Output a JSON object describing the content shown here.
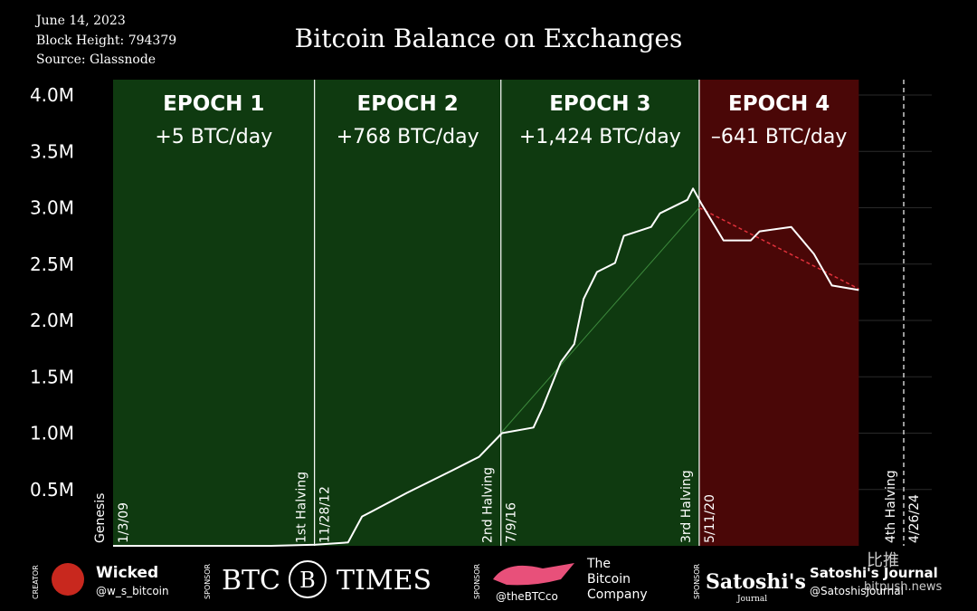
{
  "chart_data": {
    "type": "line",
    "title": "Bitcoin Balance on Exchanges",
    "info": [
      "June 14, 2023",
      "Block Height: 794379",
      "Source: Glassnode"
    ],
    "xlim": [
      2009.01,
      2024.32
    ],
    "ylim": [
      0,
      4.0
    ],
    "yticks": [
      {
        "value": 0.5,
        "label": "0.5M"
      },
      {
        "value": 1.0,
        "label": "1.0M"
      },
      {
        "value": 1.5,
        "label": "1.5M"
      },
      {
        "value": 2.0,
        "label": "2.0M"
      },
      {
        "value": 2.5,
        "label": "2.5M"
      },
      {
        "value": 3.0,
        "label": "3.0M"
      },
      {
        "value": 3.5,
        "label": "3.5M"
      },
      {
        "value": 4.0,
        "label": "4.0M"
      }
    ],
    "grid": true,
    "epochs": [
      {
        "name": "EPOCH 1",
        "rate": "+5 BTC/day",
        "start": 2009.01,
        "end": 2012.91,
        "color": "#0f3a10"
      },
      {
        "name": "EPOCH 2",
        "rate": "+768 BTC/day",
        "start": 2012.91,
        "end": 2016.52,
        "color": "#0f3a10"
      },
      {
        "name": "EPOCH 3",
        "rate": "+1,424 BTC/day",
        "start": 2016.52,
        "end": 2020.36,
        "color": "#0f3a10"
      },
      {
        "name": "EPOCH 4",
        "rate": "–641 BTC/day",
        "start": 2020.36,
        "end": 2023.45,
        "color": "#4a0707"
      }
    ],
    "events": [
      {
        "name": "Genesis",
        "date": "1/3/09",
        "x": 2009.01,
        "dashed": false
      },
      {
        "name": "1st Halving",
        "date": "11/28/12",
        "x": 2012.91,
        "dashed": false
      },
      {
        "name": "2nd Halving",
        "date": "7/9/16",
        "x": 2016.52,
        "dashed": false
      },
      {
        "name": "3rd Halving",
        "date": "5/11/20",
        "x": 2020.36,
        "dashed": false
      },
      {
        "name": "4th Halving",
        "date": "4/26/24",
        "x": 2024.32,
        "dashed": true
      }
    ],
    "series": [
      {
        "color": "#ffffff",
        "width": 2,
        "x": [
          2009.01,
          2012.07,
          2012.93,
          2013.56,
          2013.83,
          2014.0,
          2014.7,
          2015.58,
          2016.1,
          2016.54,
          2017.15,
          2017.33,
          2017.68,
          2017.94,
          2018.12,
          2018.38,
          2018.73,
          2018.9,
          2019.43,
          2019.6,
          2020.13,
          2020.24,
          2020.41,
          2020.83,
          2021.36,
          2021.53,
          2022.14,
          2022.58,
          2022.93,
          2023.45
        ],
        "values": [
          0,
          0,
          0.01,
          0.03,
          0.26,
          0.3,
          0.47,
          0.67,
          0.79,
          1.0,
          1.05,
          1.23,
          1.63,
          1.79,
          2.19,
          2.43,
          2.51,
          2.75,
          2.83,
          2.95,
          3.07,
          3.17,
          3.03,
          2.71,
          2.71,
          2.79,
          2.83,
          2.59,
          2.31,
          2.27
        ]
      },
      {
        "color": "#3d8a3d",
        "width": 1,
        "dashed": false,
        "x": [
          2016.52,
          2020.36
        ],
        "values": [
          1.0,
          3.0
        ]
      },
      {
        "color": "#e0303a",
        "width": 1.5,
        "dashed": true,
        "x": [
          2020.36,
          2023.45
        ],
        "values": [
          3.0,
          2.28
        ]
      }
    ],
    "footer": {
      "creator_tag": "CREATOR",
      "creator": "Wicked",
      "creator_handle": "@w_s_bitcoin",
      "sponsor_tag": "SPONSOR",
      "btc_times": [
        "BTC",
        "TIMES"
      ],
      "btcco_handle": "@theBTCco",
      "btcco": [
        "The",
        "Bitcoin",
        "Company"
      ],
      "satoshi_logo": "Satoshi's",
      "satoshi_logo_sub": "Journal",
      "satoshi": "Satoshi's Journal",
      "satoshi_handle": "@SatoshisJournal",
      "watermark": [
        "比推",
        "bitpush.news"
      ]
    }
  }
}
